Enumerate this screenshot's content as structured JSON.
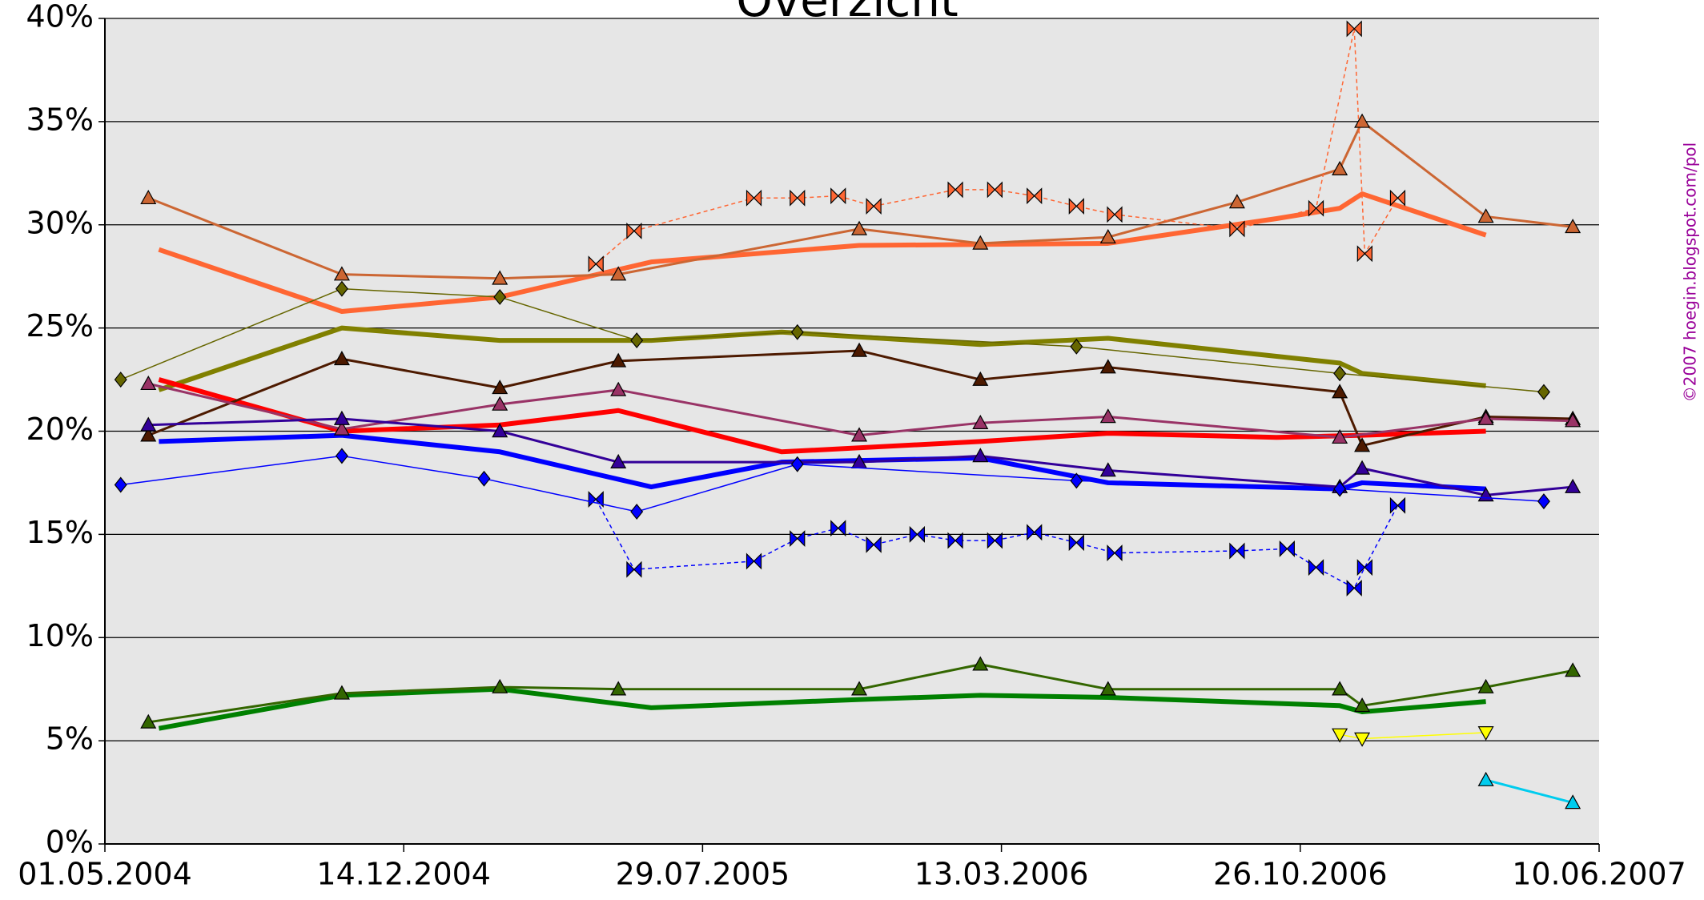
{
  "chart_data": {
    "type": "line",
    "title": "Overzicht",
    "watermark": "©2007 hoegin.blogspot.com/pol",
    "xlim": [
      "2004-05-01",
      "2007-06-10"
    ],
    "xticks": [
      {
        "value": "2004-05-01",
        "label": "01.05.2004"
      },
      {
        "value": "2004-12-14",
        "label": "14.12.2004"
      },
      {
        "value": "2005-07-29",
        "label": "29.07.2005"
      },
      {
        "value": "2006-03-13",
        "label": "13.03.2006"
      },
      {
        "value": "2006-10-26",
        "label": "26.10.2006"
      },
      {
        "value": "2007-06-10",
        "label": "10.06.2007"
      }
    ],
    "ylim": [
      0,
      40
    ],
    "yticks": [
      {
        "value": 0,
        "label": "0%"
      },
      {
        "value": 5,
        "label": "5%"
      },
      {
        "value": 10,
        "label": "10%"
      },
      {
        "value": 15,
        "label": "15%"
      },
      {
        "value": 20,
        "label": "20%"
      },
      {
        "value": 25,
        "label": "25%"
      },
      {
        "value": 30,
        "label": "30%"
      },
      {
        "value": 35,
        "label": "35%"
      },
      {
        "value": 40,
        "label": "40%"
      }
    ],
    "grid": true,
    "series": [
      {
        "color": "#ff6633",
        "width": 6,
        "dash": false,
        "marker": "none",
        "x": [
          "2004-06-11",
          "2004-10-28",
          "2005-02-25",
          "2005-06-20",
          "2005-11-25",
          "2006-06-02",
          "2006-10-08",
          "2006-11-25",
          "2006-12-12",
          "2007-03-16"
        ],
        "values": [
          28.8,
          25.8,
          26.5,
          28.2,
          29.0,
          29.1,
          30.3,
          30.8,
          31.5,
          29.5
        ]
      },
      {
        "color": "#808000",
        "width": 6,
        "dash": false,
        "marker": "none",
        "x": [
          "2004-06-11",
          "2004-10-28",
          "2005-02-25",
          "2005-06-20",
          "2005-09-27",
          "2006-02-25",
          "2006-06-02",
          "2006-11-25",
          "2006-12-12",
          "2007-03-16"
        ],
        "values": [
          22.0,
          25.0,
          24.4,
          24.4,
          24.8,
          24.2,
          24.5,
          23.3,
          22.8,
          22.2
        ]
      },
      {
        "color": "#ff0000",
        "width": 6,
        "dash": false,
        "marker": "none",
        "x": [
          "2004-06-11",
          "2004-10-28",
          "2005-02-25",
          "2005-05-26",
          "2005-09-27",
          "2006-02-25",
          "2006-06-02",
          "2006-10-08",
          "2006-12-12",
          "2007-03-16"
        ],
        "values": [
          22.5,
          20.0,
          20.3,
          21.0,
          19.0,
          19.5,
          19.9,
          19.7,
          19.8,
          20.0
        ]
      },
      {
        "color": "#0000ff",
        "width": 6,
        "dash": false,
        "marker": "none",
        "x": [
          "2004-06-11",
          "2004-10-28",
          "2005-02-25",
          "2005-06-20",
          "2005-09-27",
          "2006-02-25",
          "2006-06-02",
          "2006-11-25",
          "2006-12-12",
          "2007-03-16"
        ],
        "values": [
          19.5,
          19.8,
          19.0,
          17.3,
          18.5,
          18.7,
          17.5,
          17.2,
          17.5,
          17.2
        ]
      },
      {
        "color": "#008000",
        "width": 6,
        "dash": false,
        "marker": "none",
        "x": [
          "2004-06-11",
          "2004-10-28",
          "2005-02-25",
          "2005-06-20",
          "2005-11-25",
          "2006-02-25",
          "2006-06-02",
          "2006-11-25",
          "2006-12-12",
          "2007-03-16"
        ],
        "values": [
          5.6,
          7.2,
          7.5,
          6.6,
          7.0,
          7.2,
          7.1,
          6.7,
          6.4,
          6.9
        ]
      },
      {
        "color": "#cc6633",
        "width": 3,
        "dash": false,
        "marker": "up",
        "x": [
          "2004-06-03",
          "2004-10-28",
          "2005-02-25",
          "2005-05-26",
          "2005-11-25",
          "2006-02-25",
          "2006-06-02",
          "2006-09-08",
          "2006-11-25",
          "2006-12-12",
          "2007-03-16",
          "2007-05-21"
        ],
        "values": [
          31.3,
          27.6,
          27.4,
          27.6,
          29.8,
          29.1,
          29.4,
          31.1,
          32.7,
          35.0,
          30.4,
          29.9
        ]
      },
      {
        "color": "#4d1a00",
        "width": 3,
        "dash": false,
        "marker": "up",
        "x": [
          "2004-06-03",
          "2004-10-28",
          "2005-02-25",
          "2005-05-26",
          "2005-11-25",
          "2006-02-25",
          "2006-06-02",
          "2006-11-25",
          "2006-12-12",
          "2007-03-16",
          "2007-05-21"
        ],
        "values": [
          19.8,
          23.5,
          22.1,
          23.4,
          23.9,
          22.5,
          23.1,
          21.9,
          19.3,
          20.7,
          20.6
        ]
      },
      {
        "color": "#993366",
        "width": 3,
        "dash": false,
        "marker": "up",
        "x": [
          "2004-06-03",
          "2004-10-28",
          "2005-02-25",
          "2005-05-26",
          "2005-11-25",
          "2006-02-25",
          "2006-06-02",
          "2006-11-25",
          "2007-03-16",
          "2007-05-21"
        ],
        "values": [
          22.3,
          20.1,
          21.3,
          22.0,
          19.8,
          20.4,
          20.7,
          19.7,
          20.6,
          20.5
        ]
      },
      {
        "color": "#330099",
        "width": 3,
        "dash": false,
        "marker": "up",
        "x": [
          "2004-06-03",
          "2004-10-28",
          "2005-02-25",
          "2005-05-26",
          "2005-11-25",
          "2006-02-25",
          "2006-06-02",
          "2006-11-25",
          "2006-12-12",
          "2007-03-16",
          "2007-05-21"
        ],
        "values": [
          20.3,
          20.6,
          20.0,
          18.5,
          18.5,
          18.8,
          18.1,
          17.3,
          18.2,
          16.9,
          17.3
        ]
      },
      {
        "color": "#336600",
        "width": 3,
        "dash": false,
        "marker": "up",
        "x": [
          "2004-06-03",
          "2004-10-28",
          "2005-02-25",
          "2005-05-26",
          "2005-11-25",
          "2006-02-25",
          "2006-06-02",
          "2006-11-25",
          "2006-12-12",
          "2007-03-16",
          "2007-05-21"
        ],
        "values": [
          5.9,
          7.3,
          7.6,
          7.5,
          7.5,
          8.7,
          7.5,
          7.5,
          6.7,
          7.6,
          8.4
        ]
      },
      {
        "color": "#ff6633",
        "width": 1.5,
        "dash": true,
        "marker": "bowtie",
        "x": [
          "2005-05-09",
          "2005-06-07",
          "2005-09-06",
          "2005-10-09",
          "2005-11-09",
          "2005-12-06",
          "2006-02-06",
          "2006-03-08",
          "2006-04-07",
          "2006-05-09",
          "2006-06-07",
          "2006-09-08",
          "2006-11-07",
          "2006-12-06",
          "2006-12-14",
          "2007-01-08"
        ],
        "values": [
          28.1,
          29.7,
          31.3,
          31.3,
          31.4,
          30.9,
          31.7,
          31.7,
          31.4,
          30.9,
          30.5,
          29.8,
          30.8,
          39.5,
          28.6,
          31.3
        ]
      },
      {
        "color": "#0000ff",
        "width": 1.5,
        "dash": true,
        "marker": "bowtie",
        "x": [
          "2005-05-09",
          "2005-06-07",
          "2005-09-06",
          "2005-10-09",
          "2005-11-09",
          "2005-12-06",
          "2006-01-08",
          "2006-02-06",
          "2006-03-08",
          "2006-04-07",
          "2006-05-09",
          "2006-06-07",
          "2006-09-08",
          "2006-10-16",
          "2006-11-07",
          "2006-12-06",
          "2006-12-14",
          "2007-01-08"
        ],
        "values": [
          16.7,
          13.3,
          13.7,
          14.8,
          15.3,
          14.5,
          15.0,
          14.7,
          14.7,
          15.1,
          14.6,
          14.1,
          14.2,
          14.3,
          13.4,
          12.4,
          13.4,
          16.4
        ]
      },
      {
        "color": "#666600",
        "width": 1.5,
        "dash": false,
        "marker": "diamond",
        "x": [
          "2004-05-13",
          "2004-10-28",
          "2005-02-25",
          "2005-06-09",
          "2005-10-09",
          "2006-05-09",
          "2006-11-25",
          "2007-04-29"
        ],
        "values": [
          22.5,
          26.9,
          26.5,
          24.4,
          24.8,
          24.1,
          22.8,
          21.9
        ]
      },
      {
        "color": "#0000ff",
        "width": 1.5,
        "dash": false,
        "marker": "diamond",
        "x": [
          "2004-05-13",
          "2004-10-28",
          "2005-02-13",
          "2005-06-09",
          "2005-10-09",
          "2006-05-09",
          "2006-11-25",
          "2007-04-29"
        ],
        "values": [
          17.4,
          18.8,
          17.7,
          16.1,
          18.4,
          17.6,
          17.2,
          16.6
        ]
      },
      {
        "color": "#ffff00",
        "width": 1.5,
        "dash": false,
        "marker": "down",
        "x": [
          "2006-11-25",
          "2006-12-12",
          "2007-03-16"
        ],
        "values": [
          5.3,
          5.1,
          5.4
        ]
      },
      {
        "color": "#00ccee",
        "width": 3,
        "dash": false,
        "marker": "up",
        "x": [
          "2007-03-16",
          "2007-05-21"
        ],
        "values": [
          3.1,
          2.0
        ]
      }
    ]
  }
}
